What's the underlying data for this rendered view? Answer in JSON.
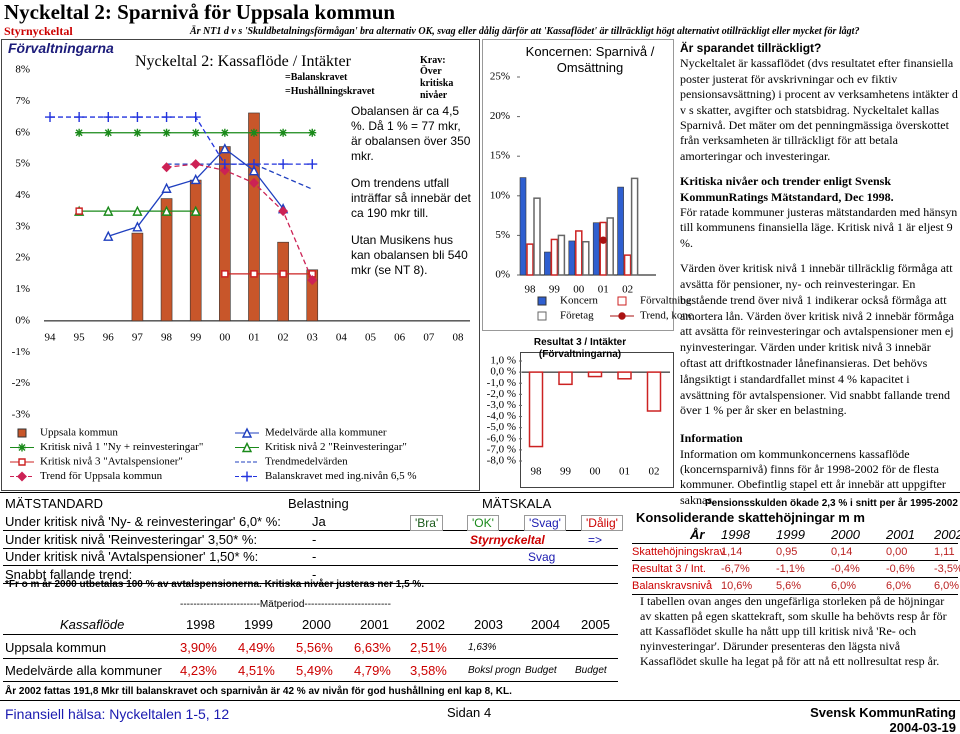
{
  "header": {
    "title": "Nyckeltal 2: Sparnivå för Uppsala kommun",
    "label": "Styrnyckeltal",
    "question": "Är NT1 d v s 'Skuldbetalningsförmågan' bra alternativ OK, svag eller dålig därför att 'Kassaflödet' är tillräckligt högt alternativt otillräckligt eller mycket för lågt?"
  },
  "chart_data": [
    {
      "type": "bar",
      "title": "Nyckeltal 2: Kassaflöde / Intäkter",
      "group": "Förvaltningarna",
      "annotations": [
        "Krav:",
        "Över kritiska nivåer",
        "=Balanskravet",
        "=Hushållningskravet",
        "Obalansen är ca 4,5 %. Då 1 % = 77 mkr, är obalansen över 350 mkr.",
        "Om trendens utfall inträffar så innebär det ca 190 mkr till.",
        "Utan Musikens hus kan obalansen bli 540 mkr (se NT 8)."
      ],
      "categories": [
        "94",
        "95",
        "96",
        "97",
        "98",
        "99",
        "00",
        "01",
        "02",
        "03",
        "04",
        "05",
        "06",
        "07",
        "08"
      ],
      "ylim": [
        -3,
        8
      ],
      "yticks": [
        {
          "value": -3,
          "label": "-3%"
        },
        {
          "value": -2,
          "label": "-2%"
        },
        {
          "value": -1,
          "label": "-1%"
        },
        {
          "value": 0,
          "label": "0%"
        },
        {
          "value": 1,
          "label": "1%"
        },
        {
          "value": 2,
          "label": "2%"
        },
        {
          "value": 3,
          "label": "3%"
        },
        {
          "value": 4,
          "label": "4%"
        },
        {
          "value": 5,
          "label": "5%"
        },
        {
          "value": 6,
          "label": "6%"
        },
        {
          "value": 7,
          "label": "7%"
        },
        {
          "value": 8,
          "label": "8%"
        }
      ],
      "grid": false,
      "series": [
        {
          "name": "Uppsala kommun",
          "kind": "bar",
          "color": "#c8562a",
          "values": [
            null,
            null,
            null,
            2.8,
            3.9,
            4.49,
            5.56,
            6.63,
            2.51,
            1.63,
            null,
            null,
            null,
            null,
            null
          ]
        },
        {
          "name": "Medelvärde alla kommuner",
          "kind": "line",
          "marker": "triangle",
          "color": "#1f3fbf",
          "values": [
            null,
            null,
            2.7,
            3.0,
            4.23,
            4.51,
            5.49,
            4.79,
            3.58,
            null,
            null,
            null,
            null,
            null,
            null
          ]
        },
        {
          "name": "Kritisk nivå 1 \"Ny + reinvesteringar\"",
          "kind": "line",
          "marker": "asterisk",
          "color": "#1a8a1a",
          "values": [
            null,
            6.0,
            6.0,
            6.0,
            6.0,
            6.0,
            6.0,
            6.0,
            6.0,
            6.0,
            null,
            null,
            null,
            null,
            null
          ]
        },
        {
          "name": "Kritisk nivå 2 \"Reinvesteringar\"",
          "kind": "line",
          "marker": "triangle",
          "color": "#1a8a1a",
          "values": [
            null,
            3.5,
            3.5,
            3.5,
            3.5,
            3.5,
            null,
            null,
            null,
            null,
            null,
            null,
            null,
            null,
            null
          ]
        },
        {
          "name": "Kritisk nivå 3 \"Avtalspensioner\"",
          "kind": "line",
          "marker": "square",
          "color": "#cc2222",
          "values": [
            null,
            3.5,
            null,
            null,
            null,
            null,
            1.5,
            1.5,
            1.5,
            1.5,
            null,
            null,
            null,
            null,
            null
          ]
        },
        {
          "name": "Trendmedelvärden",
          "kind": "line",
          "marker": "none",
          "dashed": true,
          "color": "#1f3fbf",
          "values": [
            null,
            null,
            null,
            null,
            5.0,
            5.0,
            5.0,
            5.0,
            4.6,
            4.2,
            null,
            null,
            null,
            null,
            null
          ]
        },
        {
          "name": "Trend för Uppsala kommun",
          "kind": "line",
          "marker": "diamond",
          "dashed": true,
          "color": "#cc2255",
          "values": [
            null,
            null,
            null,
            null,
            4.9,
            5.0,
            4.8,
            4.4,
            3.5,
            1.3,
            null,
            null,
            null,
            null,
            null
          ]
        },
        {
          "name": "Balanskravet med ing.nivån 6,5 %",
          "kind": "line",
          "marker": "plus",
          "dashed": true,
          "color": "#2233dd",
          "values": [
            6.5,
            6.5,
            6.5,
            6.5,
            6.5,
            6.5,
            5.0,
            5.0,
            5.0,
            5.0,
            null,
            null,
            null,
            null,
            null
          ]
        }
      ]
    },
    {
      "type": "bar",
      "title": "Koncernen: Sparnivå / Omsättning",
      "categories": [
        "98",
        "99",
        "00",
        "01",
        "02"
      ],
      "ylim": [
        0,
        25
      ],
      "yticks": [
        {
          "value": 0,
          "label": "0%"
        },
        {
          "value": 5,
          "label": "5%"
        },
        {
          "value": 10,
          "label": "10%"
        },
        {
          "value": 15,
          "label": "15%"
        },
        {
          "value": 20,
          "label": "20%"
        },
        {
          "value": 25,
          "label": "25%"
        }
      ],
      "grid": false,
      "series": [
        {
          "name": "Koncern",
          "kind": "bar",
          "color": "#2f5fd0",
          "values": [
            12.3,
            2.9,
            4.3,
            6.6,
            11.1
          ]
        },
        {
          "name": "Förvaltning",
          "kind": "bar",
          "hollow": true,
          "color": "#cc2222",
          "values": [
            3.9,
            4.49,
            5.56,
            6.63,
            2.51
          ]
        },
        {
          "name": "Företag",
          "kind": "bar",
          "hollow": true,
          "color": "#666666",
          "values": [
            9.7,
            5.0,
            4.2,
            7.2,
            12.2
          ]
        },
        {
          "name": "Trend, konc",
          "kind": "line",
          "marker": "circle",
          "color": "#aa1111",
          "values": [
            null,
            null,
            null,
            4.4,
            null
          ]
        }
      ]
    },
    {
      "type": "bar",
      "title": "Resultat 3 / Intäkter (Förvaltningarna)",
      "categories": [
        "98",
        "99",
        "00",
        "01",
        "02"
      ],
      "ylim": [
        -8,
        1
      ],
      "yticks": [
        {
          "value": -8,
          "label": "-8,0 %"
        },
        {
          "value": -7,
          "label": "-7,0 %"
        },
        {
          "value": -6,
          "label": "-6,0 %"
        },
        {
          "value": -5,
          "label": "-5,0 %"
        },
        {
          "value": -4,
          "label": "-4,0 %"
        },
        {
          "value": -3,
          "label": "-3,0 %"
        },
        {
          "value": -2,
          "label": "-2,0 %"
        },
        {
          "value": -1,
          "label": "-1,0 %"
        },
        {
          "value": 0,
          "label": "0,0 %"
        },
        {
          "value": 1,
          "label": "1,0 %"
        }
      ],
      "grid": false,
      "series": [
        {
          "name": "Resultat 3 / Intäkter",
          "kind": "bar",
          "hollow": true,
          "color": "#cc2222",
          "values": [
            -6.7,
            -1.1,
            -0.4,
            -0.6,
            -3.5
          ]
        }
      ]
    }
  ],
  "right_text": {
    "heading_1": "Är sparandet tillräckligt?",
    "para_1": "Nyckeltalet är kassaflödet (dvs resultatet efter finansiella poster justerat för avskrivningar och ev fiktiv pensionsavsättning) i procent av verksamhetens intäkter d v s skatter, avgifter och statsbidrag. Nyckeltalet kallas Sparnivå. Det mäter om det penningmässiga överskottet från verksamheten är tillräckligt för att betala amorteringar och investeringar.",
    "heading_2": "Kritiska nivåer och trender enligt Svensk KommunRatings Mätstandard, Dec 1998.",
    "para_2": "För ratade kommuner justeras mätstandarden med hänsyn till kommunens finansiella läge. Kritisk nivå 1 är eljest 9 %.",
    "para_3": "Värden över kritisk nivå 1 innebär tillräcklig förmåga att avsätta för pensioner, ny- och reinvesteringar. En bestående trend över nivå 1 indikerar också förmåga att amortera lån. Värden över kritisk nivå 2 innebär förmåga att avsätta för reinvesteringar och avtalspensioner men ej nyinvesteringar. Värden under kritisk nivå 3 innebär oftast att driftkostnader lånefinansieras. Det behövs långsiktigt i standardfallet minst 4 % kapacitet i avsättning för avtalspensioner. Vid snabbt fallande trend över 1 % per år sker en belastning.",
    "heading_3": "Information",
    "para_4": "Information om kommunkoncernens kassaflöde (koncernsparnivå) finns för år 1998-2002 för de flesta kommuner. Obefintlig stapel ett år innebär att uppgifter saknas."
  },
  "measure": {
    "header": [
      "MÄTSTANDARD",
      "Belastning",
      "MÄTSKALA"
    ],
    "rows": [
      [
        "Under kritisk nivå 'Ny- & reinvesteringar' 6,0* %:",
        "Ja"
      ],
      [
        "Under kritisk nivå 'Reinvesteringar' 3,50* %:",
        "-"
      ],
      [
        "Under kritisk nivå 'Avtalspensioner' 1,50* %:",
        "-"
      ],
      [
        "Snabbt fallande trend:",
        "-"
      ]
    ],
    "scale": [
      "'Bra'",
      "'OK'",
      "'Svag'",
      "'Dålig'"
    ],
    "key_label": "Styrnyckeltal",
    "arrow": "=>",
    "rating": "Svag",
    "footnote": "*Fr o m år 2000 utbetalas 100 % av avtalspensionerna. Kritiska nivåer justeras ner 1,5 %."
  },
  "period": {
    "caption": "------------------------Mätperiod--------------------------",
    "header": [
      "Kassaflöde",
      "1998",
      "1999",
      "2000",
      "2001",
      "2002",
      "2003",
      "2004",
      "2005"
    ],
    "rows": [
      [
        "Uppsala kommun",
        "3,90%",
        "4,49%",
        "5,56%",
        "6,63%",
        "2,51%",
        "1,63%"
      ],
      [
        "Medelvärde alla kommuner",
        "4,23%",
        "4,51%",
        "5,49%",
        "4,79%",
        "3,58%",
        "Boksl progn",
        "Budget",
        "Budget"
      ]
    ]
  },
  "tax": {
    "note": "Pensionsskulden ökade 2,3 % i snitt per år 1995-2002",
    "title": "Konsoliderande skattehöjningar m m",
    "header": [
      "År",
      "1998",
      "1999",
      "2000",
      "2001",
      "2002"
    ],
    "rows": [
      [
        "Skattehöjningskrav",
        "1,14",
        "0,95",
        "0,14",
        "0,00",
        "1,11"
      ],
      [
        "Resultat 3 / Int.",
        "-6,7%",
        "-1,1%",
        "-0,4%",
        "-0,6%",
        "-3,5%"
      ],
      [
        "Balanskravsnivå",
        "10,6%",
        "5,6%",
        "6,0%",
        "6,0%",
        "6,0%"
      ]
    ],
    "text": "I tabellen ovan anges den ungefärliga storleken på de höjningar av skatten på egen skattekraft, som skulle ha behövts resp år för att Kassaflödet skulle ha nått upp till  kritisk nivå 'Re- och nyinvesteringar'. Därunder presenteras den lägsta nivå Kassaflödet skulle ha legat på för att nå ett nollresultat resp år."
  },
  "footer": {
    "note": "År 2002 fattas 191,8 Mkr till balanskravet och sparnivån är 42 % av nivån för god hushållning enl kap 8, KL.",
    "series_name": "Finansiell hälsa: Nyckeltalen 1-5, 12",
    "page": "Sidan",
    "page_no": "4",
    "brand": "Svensk KommunRating",
    "date": "2004-03-19"
  }
}
